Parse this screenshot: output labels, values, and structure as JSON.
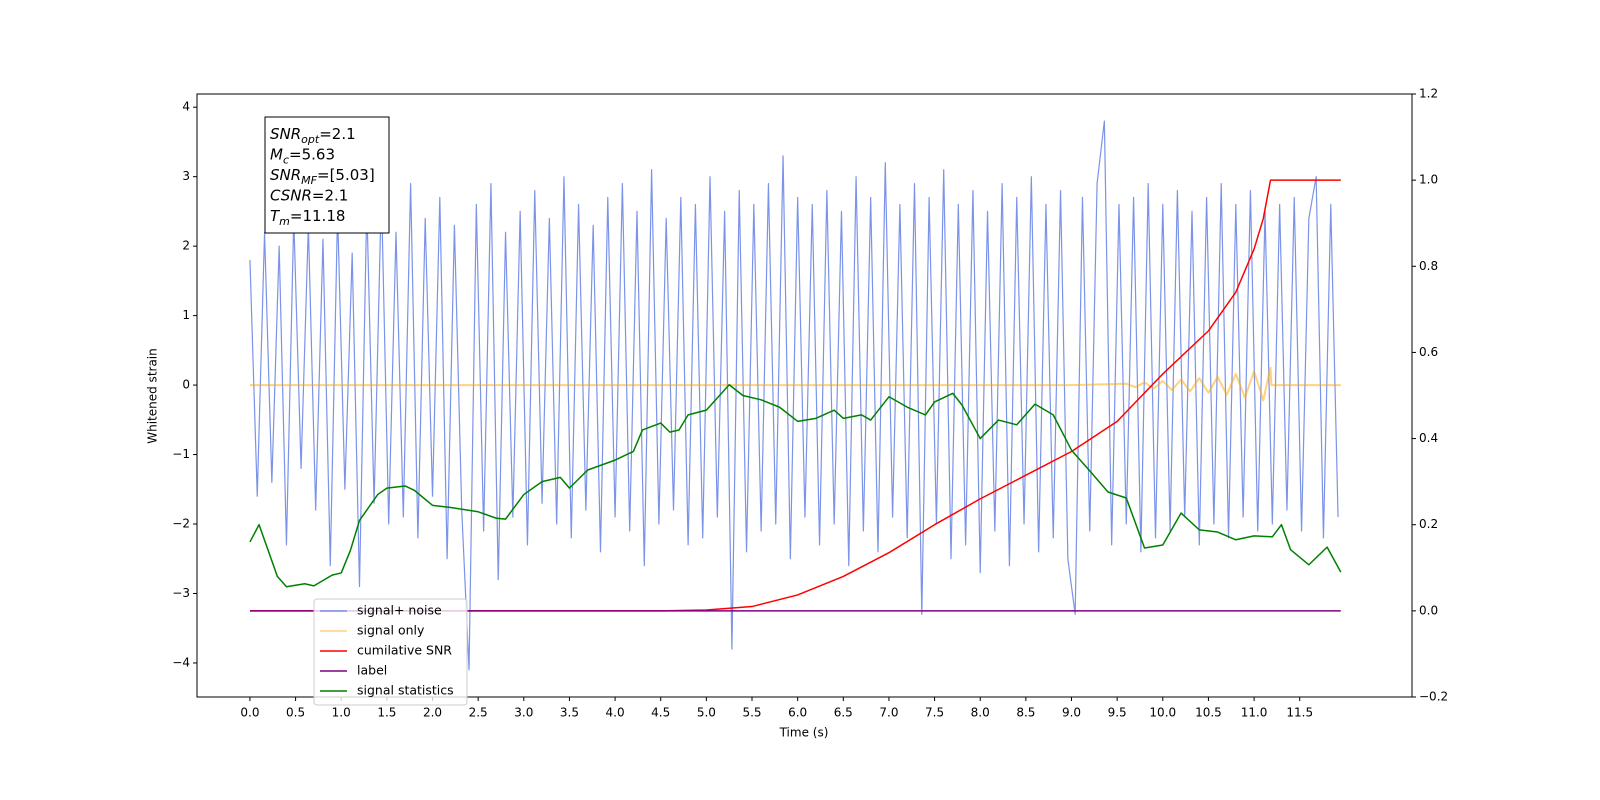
{
  "chart_data": {
    "type": "line",
    "xlabel": "Time (s)",
    "ylabel": "Whitened strain",
    "xlim": [
      -0.58,
      12.73
    ],
    "ylim": [
      -4.49,
      4.19
    ],
    "y2lim": [
      -0.2,
      1.2
    ],
    "xticks": [
      {
        "value": 0,
        "label": "0.0"
      },
      0.5,
      {
        "value": 1,
        "label": "1.0"
      },
      1.5,
      {
        "value": 2,
        "label": "2.0"
      },
      2.5,
      {
        "value": 3,
        "label": "3.0"
      },
      3.5,
      {
        "value": 4,
        "label": "4.0"
      },
      4.5,
      {
        "value": 5,
        "label": "5.0"
      },
      5.5,
      {
        "value": 6,
        "label": "6.0"
      },
      6.5,
      {
        "value": 7,
        "label": "7.0"
      },
      7.5,
      {
        "value": 8,
        "label": "8.0"
      },
      8.5,
      {
        "value": 9,
        "label": "9.0"
      },
      9.5,
      {
        "value": 10,
        "label": "10.0"
      },
      10.5,
      {
        "value": 11,
        "label": "11.0"
      },
      11.5
    ],
    "yticks": [
      {
        "value": -4,
        "label": "−4"
      },
      {
        "value": -3,
        "label": "−3"
      },
      {
        "value": -2,
        "label": "−2"
      },
      {
        "value": -1,
        "label": "−1"
      },
      0,
      1,
      2,
      3,
      4
    ],
    "y2ticks": [
      {
        "value": -0.2,
        "label": "−0.2"
      },
      {
        "value": 0,
        "label": "0.0"
      },
      0.2,
      0.4,
      0.6,
      0.8,
      {
        "value": 1,
        "label": "1.0"
      },
      1.2
    ],
    "legend": "lower left",
    "annotations": [
      {
        "base": "SNR",
        "sub": "opt",
        "text": "=2.1"
      },
      {
        "base": "M",
        "sub": "c",
        "text": "=5.63"
      },
      {
        "base": "SNR",
        "sub": "MF",
        "text": "=[5.03]"
      },
      {
        "base": "CSNR",
        "text": "=2.1"
      },
      {
        "base": "T",
        "sub": "m",
        "text": "=11.18"
      }
    ],
    "series": [
      {
        "name": "signal+ noise",
        "color": "#7b93e8",
        "axis": "y",
        "x": [
          0,
          0.08,
          0.16,
          0.24,
          0.32,
          0.4,
          0.48,
          0.56,
          0.64,
          0.72,
          0.8,
          0.88,
          0.96,
          1.04,
          1.12,
          1.2,
          1.28,
          1.36,
          1.44,
          1.52,
          1.6,
          1.68,
          1.76,
          1.84,
          1.92,
          2,
          2.08,
          2.16,
          2.24,
          2.32,
          2.4,
          2.48,
          2.56,
          2.64,
          2.72,
          2.8,
          2.88,
          2.96,
          3.04,
          3.12,
          3.2,
          3.28,
          3.36,
          3.44,
          3.52,
          3.6,
          3.68,
          3.76,
          3.84,
          3.92,
          4,
          4.08,
          4.16,
          4.24,
          4.32,
          4.4,
          4.48,
          4.56,
          4.64,
          4.72,
          4.8,
          4.88,
          4.96,
          5.04,
          5.12,
          5.2,
          5.28,
          5.36,
          5.44,
          5.52,
          5.6,
          5.68,
          5.76,
          5.84,
          5.92,
          6,
          6.08,
          6.16,
          6.24,
          6.32,
          6.4,
          6.48,
          6.56,
          6.64,
          6.72,
          6.8,
          6.88,
          6.96,
          7.04,
          7.12,
          7.2,
          7.28,
          7.36,
          7.44,
          7.52,
          7.6,
          7.68,
          7.76,
          7.84,
          7.92,
          8,
          8.08,
          8.16,
          8.24,
          8.32,
          8.4,
          8.48,
          8.56,
          8.64,
          8.72,
          8.8,
          8.88,
          8.96,
          9.04,
          9.12,
          9.2,
          9.28,
          9.36,
          9.44,
          9.52,
          9.6,
          9.68,
          9.76,
          9.84,
          9.92,
          10,
          10.08,
          10.16,
          10.24,
          10.32,
          10.4,
          10.48,
          10.56,
          10.64,
          10.72,
          10.8,
          10.88,
          10.96,
          11.04,
          11.12,
          11.2,
          11.28,
          11.36,
          11.44,
          11.52,
          11.6,
          11.68,
          11.76,
          11.84,
          11.92
        ],
        "values": [
          1.8,
          -1.6,
          2.2,
          -1.4,
          2.0,
          -2.3,
          2.4,
          -1.2,
          2.3,
          -1.8,
          2.1,
          -2.6,
          2.5,
          -1.5,
          1.9,
          -2.9,
          2.6,
          -1.7,
          2.8,
          -2.0,
          2.2,
          -1.9,
          2.9,
          -2.2,
          2.4,
          -1.6,
          2.7,
          -2.5,
          2.3,
          -1.8,
          -4.1,
          2.6,
          -2.1,
          2.9,
          -2.8,
          2.2,
          -1.9,
          2.5,
          -2.3,
          2.8,
          -1.7,
          2.4,
          -2.0,
          3.0,
          -2.2,
          2.6,
          -1.8,
          2.3,
          -2.4,
          2.7,
          -1.9,
          2.9,
          -2.1,
          2.5,
          -2.6,
          3.1,
          -2.0,
          2.4,
          -1.8,
          2.7,
          -2.3,
          2.6,
          -2.2,
          3.0,
          -1.9,
          2.5,
          -3.8,
          2.8,
          -2.4,
          2.6,
          -2.1,
          2.9,
          -2.0,
          3.3,
          -2.5,
          2.7,
          -1.9,
          2.6,
          -2.3,
          2.8,
          -2.0,
          2.5,
          -2.6,
          3.0,
          -2.1,
          2.7,
          -2.4,
          3.2,
          -1.9,
          2.6,
          -2.2,
          2.9,
          -3.3,
          2.7,
          -2.0,
          3.1,
          -2.5,
          2.6,
          -2.3,
          2.8,
          -2.7,
          2.5,
          -2.1,
          2.9,
          -2.6,
          2.7,
          -2.0,
          3.0,
          -2.4,
          2.6,
          -2.2,
          2.8,
          -2.5,
          -3.3,
          2.7,
          -2.1,
          2.9,
          3.8,
          -2.3,
          2.6,
          -2.0,
          2.7,
          -2.4,
          2.9,
          -2.2,
          2.6,
          -2.1,
          2.8,
          -1.9,
          2.5,
          -2.3,
          2.7,
          -2.0,
          2.9,
          -2.2,
          2.6,
          -1.9,
          2.8,
          -2.1,
          2.5,
          -2.0,
          2.6,
          -1.8,
          2.7,
          -2.1,
          2.4,
          3.0,
          -2.2,
          2.6,
          -1.9
        ]
      },
      {
        "name": "signal only",
        "color": "#ffa500",
        "axis": "y",
        "x": [
          0,
          9.0,
          9.6,
          9.7,
          9.8,
          9.9,
          10.0,
          10.1,
          10.2,
          10.3,
          10.4,
          10.5,
          10.6,
          10.7,
          10.8,
          10.9,
          11.0,
          11.1,
          11.18,
          11.19,
          11.95
        ],
        "values": [
          0,
          0,
          0.02,
          -0.03,
          0.04,
          -0.05,
          0.06,
          -0.07,
          0.08,
          -0.09,
          0.1,
          -0.11,
          0.12,
          -0.14,
          0.16,
          -0.18,
          0.2,
          -0.22,
          0.25,
          0,
          0
        ]
      },
      {
        "name": "cumilative SNR",
        "color": "#ff0000",
        "axis": "y2",
        "x": [
          0,
          4.5,
          5.0,
          5.5,
          6.0,
          6.5,
          7.0,
          7.5,
          8.0,
          8.5,
          9.0,
          9.5,
          10.0,
          10.5,
          10.8,
          11.0,
          11.1,
          11.18,
          11.95
        ],
        "values": [
          0,
          0,
          0.002,
          0.01,
          0.037,
          0.08,
          0.135,
          0.2,
          0.26,
          0.315,
          0.37,
          0.44,
          0.55,
          0.65,
          0.74,
          0.84,
          0.91,
          1.0,
          1.0
        ]
      },
      {
        "name": "label",
        "color": "#800080",
        "axis": "y2",
        "x": [
          0,
          11.95
        ],
        "values": [
          0,
          0
        ]
      },
      {
        "name": "signal statistics",
        "color": "#008000",
        "axis": "y2",
        "x": [
          0,
          0.1,
          0.2,
          0.3,
          0.4,
          0.6,
          0.7,
          0.9,
          1.0,
          1.1,
          1.2,
          1.3,
          1.4,
          1.5,
          1.7,
          1.8,
          2.0,
          2.2,
          2.5,
          2.7,
          2.8,
          3.0,
          3.2,
          3.4,
          3.5,
          3.7,
          4.0,
          4.2,
          4.3,
          4.5,
          4.6,
          4.7,
          4.8,
          5.0,
          5.25,
          5.4,
          5.6,
          5.8,
          6.0,
          6.2,
          6.4,
          6.5,
          6.7,
          6.8,
          7.0,
          7.2,
          7.4,
          7.5,
          7.7,
          7.8,
          8.0,
          8.2,
          8.4,
          8.6,
          8.8,
          9.0,
          9.2,
          9.4,
          9.6,
          9.8,
          10.0,
          10.2,
          10.4,
          10.6,
          10.8,
          11.0,
          11.2,
          11.3,
          11.4,
          11.6,
          11.8,
          11.95
        ],
        "values": [
          0.16,
          0.2,
          0.14,
          0.08,
          0.056,
          0.063,
          0.058,
          0.083,
          0.088,
          0.14,
          0.21,
          0.24,
          0.27,
          0.285,
          0.29,
          0.28,
          0.245,
          0.24,
          0.23,
          0.215,
          0.213,
          0.27,
          0.3,
          0.31,
          0.285,
          0.327,
          0.35,
          0.37,
          0.42,
          0.436,
          0.415,
          0.42,
          0.455,
          0.466,
          0.525,
          0.5,
          0.49,
          0.473,
          0.44,
          0.447,
          0.466,
          0.447,
          0.455,
          0.443,
          0.497,
          0.473,
          0.455,
          0.485,
          0.505,
          0.478,
          0.4,
          0.443,
          0.432,
          0.48,
          0.455,
          0.373,
          0.325,
          0.276,
          0.262,
          0.146,
          0.153,
          0.227,
          0.188,
          0.183,
          0.165,
          0.174,
          0.172,
          0.2,
          0.142,
          0.107,
          0.148,
          0.09
        ]
      }
    ]
  }
}
